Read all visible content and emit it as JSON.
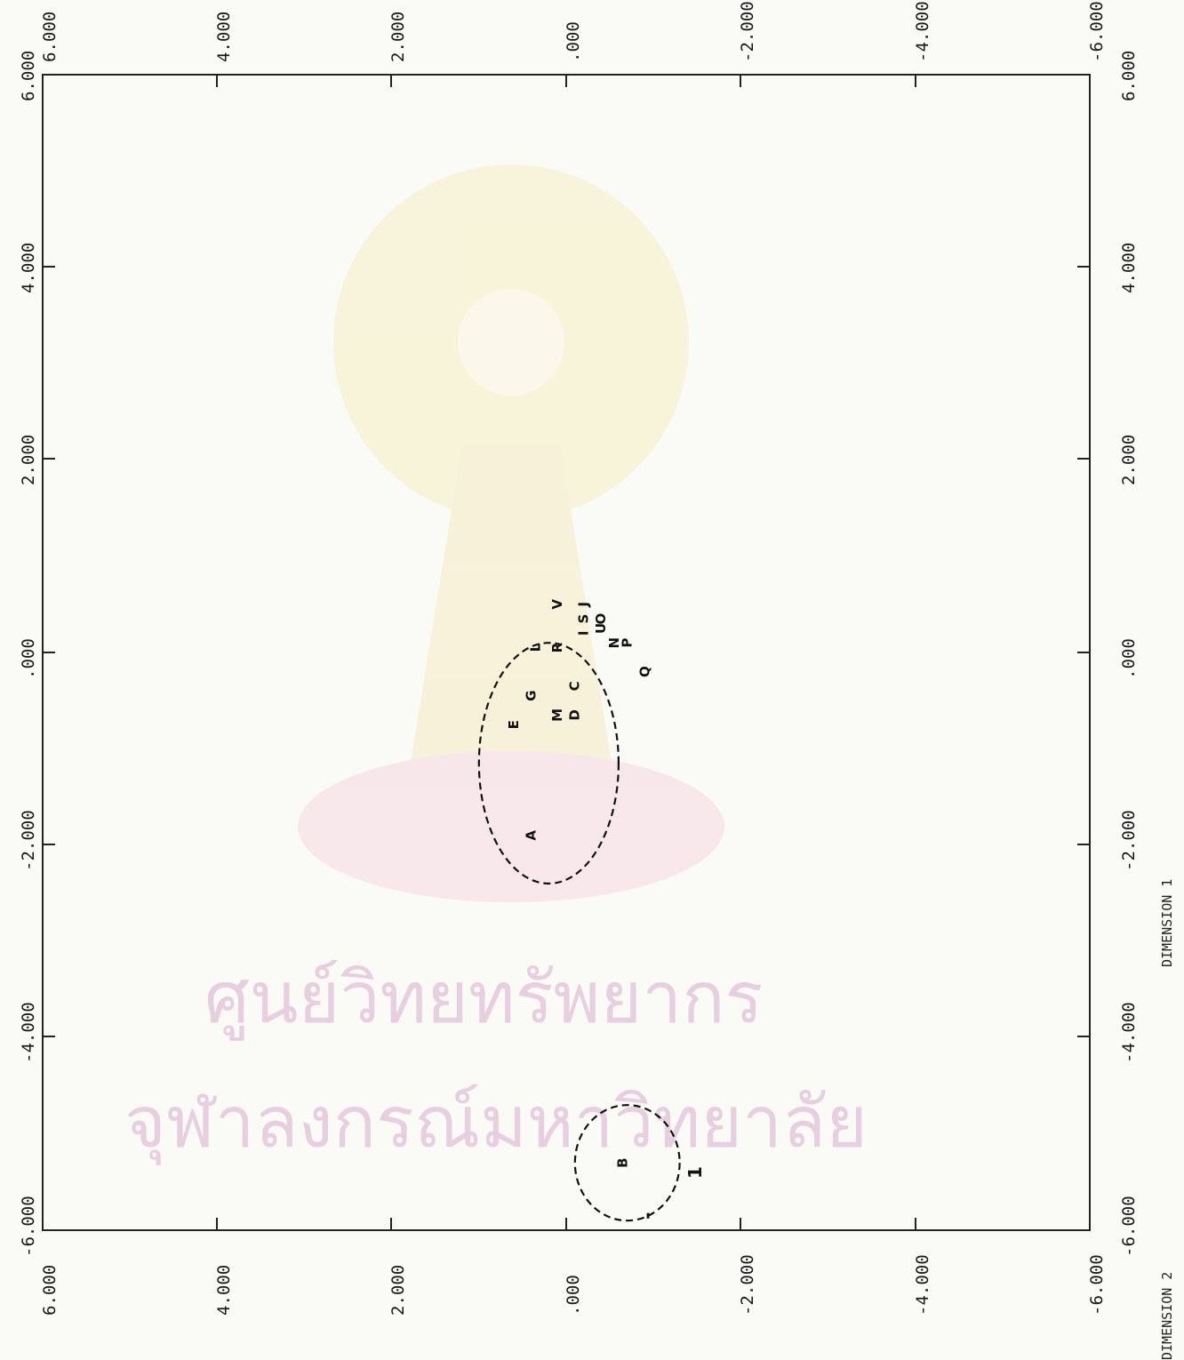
{
  "chart_data": {
    "type": "scatter",
    "xlabel": "DIMENSION 1",
    "ylabel": "DIMENSION 2",
    "xlim": [
      -6,
      6
    ],
    "ylim": [
      -6,
      6
    ],
    "x_ticks": [
      "6.000",
      "4.000",
      "2.000",
      ".000",
      "-2.000",
      "-4.000",
      "-6.000"
    ],
    "y_ticks": [
      "6.000",
      "4.000",
      "2.000",
      ".000",
      "-2.000",
      "-4.000",
      "-6.000"
    ],
    "points": [
      {
        "label": "Q",
        "x": -0.2,
        "y": 0.95
      },
      {
        "label": "P",
        "x": 0.1,
        "y": 0.75
      },
      {
        "label": "N",
        "x": 0.1,
        "y": 0.6
      },
      {
        "label": "U",
        "x": 0.25,
        "y": 0.45
      },
      {
        "label": "O",
        "x": 0.35,
        "y": 0.45
      },
      {
        "label": "I",
        "x": 0.2,
        "y": 0.25
      },
      {
        "label": "S",
        "x": 0.35,
        "y": 0.25
      },
      {
        "label": "J",
        "x": 0.5,
        "y": 0.25
      },
      {
        "label": "V",
        "x": 0.5,
        "y": -0.05
      },
      {
        "label": "R",
        "x": 0.05,
        "y": -0.05
      },
      {
        "label": "L",
        "x": 0.05,
        "y": -0.3
      },
      {
        "label": "C",
        "x": -0.35,
        "y": 0.15
      },
      {
        "label": "D",
        "x": -0.65,
        "y": 0.15
      },
      {
        "label": "M",
        "x": -0.65,
        "y": -0.05
      },
      {
        "label": "G",
        "x": -0.45,
        "y": -0.35
      },
      {
        "label": "E",
        "x": -0.75,
        "y": -0.55
      },
      {
        "label": "A",
        "x": -1.9,
        "y": -0.35
      },
      {
        "label": "B",
        "x": -5.3,
        "y": 0.7
      }
    ],
    "annotations": [
      {
        "text": "1",
        "x": -5.4,
        "y": 1.55
      },
      {
        "text": "-",
        "x": -5.85,
        "y": 1.0
      }
    ],
    "clusters": [
      {
        "shape": "ellipse",
        "center_x": -1.15,
        "center_y": -0.2,
        "radius_x": 1.25,
        "radius_y": 0.8
      },
      {
        "shape": "circle",
        "center_x": -5.3,
        "center_y": 0.7,
        "radius_x": 0.6,
        "radius_y": 0.6
      }
    ],
    "grid": false,
    "legend": "none"
  },
  "watermark": {
    "line1": "ศูนย์วิทยทรัพยากร",
    "line2": "จุฬาลงกรณ์มหาวิทยาลัย"
  }
}
